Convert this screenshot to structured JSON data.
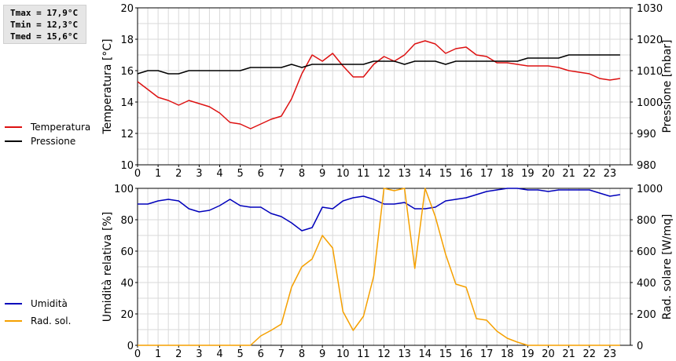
{
  "stats": {
    "tmax": "Tmax = 17,9°C",
    "tmin": "Tmin = 12,3°C",
    "tmed": "Tmed = 15,6°C"
  },
  "colors": {
    "temperature": "#dd1111",
    "pressure": "#000000",
    "humidity": "#0000bb",
    "radiation": "#f5a000",
    "grid": "#d9d9d9"
  },
  "chart_data": [
    {
      "type": "line",
      "xlim": [
        0,
        24
      ],
      "x_ticks": [
        "0",
        "1",
        "2",
        "3",
        "4",
        "5",
        "6",
        "7",
        "8",
        "9",
        "10",
        "11",
        "12",
        "13",
        "14",
        "15",
        "16",
        "17",
        "18",
        "19",
        "20",
        "21",
        "22",
        "23"
      ],
      "ylabel": "Temperatura [°C]",
      "ylim": [
        10,
        20
      ],
      "y_ticks": [
        "10",
        "12",
        "14",
        "16",
        "18",
        "20"
      ],
      "y2label": "Pressione [mbar]",
      "y2lim": [
        980,
        1030
      ],
      "y2_ticks": [
        "980",
        "990",
        "1000",
        "1010",
        "1020",
        "1030"
      ],
      "legend": [
        "Temperatura",
        "Pressione"
      ],
      "legend_placement": "left",
      "grid": true,
      "series": [
        {
          "name": "Temperatura",
          "axis": "left",
          "points": [
            [
              0,
              15.3
            ],
            [
              0.5,
              14.8
            ],
            [
              1,
              14.3
            ],
            [
              1.5,
              14.1
            ],
            [
              2,
              13.8
            ],
            [
              2.5,
              14.1
            ],
            [
              3,
              13.9
            ],
            [
              3.5,
              13.7
            ],
            [
              4,
              13.3
            ],
            [
              4.5,
              12.7
            ],
            [
              5,
              12.6
            ],
            [
              5.5,
              12.3
            ],
            [
              6,
              12.6
            ],
            [
              6.5,
              12.9
            ],
            [
              7,
              13.1
            ],
            [
              7.5,
              14.2
            ],
            [
              8,
              15.8
            ],
            [
              8.5,
              17.0
            ],
            [
              9,
              16.6
            ],
            [
              9.5,
              17.1
            ],
            [
              10,
              16.3
            ],
            [
              10.5,
              15.6
            ],
            [
              11,
              15.6
            ],
            [
              11.5,
              16.4
            ],
            [
              12,
              16.9
            ],
            [
              12.5,
              16.6
            ],
            [
              13,
              17.0
            ],
            [
              13.5,
              17.7
            ],
            [
              14,
              17.9
            ],
            [
              14.5,
              17.7
            ],
            [
              15,
              17.1
            ],
            [
              15.5,
              17.4
            ],
            [
              16,
              17.5
            ],
            [
              16.5,
              17.0
            ],
            [
              17,
              16.9
            ],
            [
              17.5,
              16.5
            ],
            [
              18,
              16.5
            ],
            [
              18.5,
              16.4
            ],
            [
              19,
              16.3
            ],
            [
              19.5,
              16.3
            ],
            [
              20,
              16.3
            ],
            [
              20.5,
              16.2
            ],
            [
              21,
              16.0
            ],
            [
              21.5,
              15.9
            ],
            [
              22,
              15.8
            ],
            [
              22.5,
              15.5
            ],
            [
              23,
              15.4
            ],
            [
              23.5,
              15.5
            ]
          ]
        },
        {
          "name": "Pressione",
          "axis": "right",
          "points": [
            [
              0,
              1009
            ],
            [
              0.5,
              1010
            ],
            [
              1,
              1010
            ],
            [
              1.5,
              1009
            ],
            [
              2,
              1009
            ],
            [
              2.5,
              1010
            ],
            [
              3,
              1010
            ],
            [
              3.5,
              1010
            ],
            [
              4,
              1010
            ],
            [
              4.5,
              1010
            ],
            [
              5,
              1010
            ],
            [
              5.5,
              1011
            ],
            [
              6,
              1011
            ],
            [
              6.5,
              1011
            ],
            [
              7,
              1011
            ],
            [
              7.5,
              1012
            ],
            [
              8,
              1011
            ],
            [
              8.5,
              1012
            ],
            [
              9,
              1012
            ],
            [
              9.5,
              1012
            ],
            [
              10,
              1012
            ],
            [
              10.5,
              1012
            ],
            [
              11,
              1012
            ],
            [
              11.5,
              1013
            ],
            [
              12,
              1013
            ],
            [
              12.5,
              1013
            ],
            [
              13,
              1012
            ],
            [
              13.5,
              1013
            ],
            [
              14,
              1013
            ],
            [
              14.5,
              1013
            ],
            [
              15,
              1012
            ],
            [
              15.5,
              1013
            ],
            [
              16,
              1013
            ],
            [
              16.5,
              1013
            ],
            [
              17,
              1013
            ],
            [
              17.5,
              1013
            ],
            [
              18,
              1013
            ],
            [
              18.5,
              1013
            ],
            [
              19,
              1014
            ],
            [
              19.5,
              1014
            ],
            [
              20,
              1014
            ],
            [
              20.5,
              1014
            ],
            [
              21,
              1015
            ],
            [
              21.5,
              1015
            ],
            [
              22,
              1015
            ],
            [
              22.5,
              1015
            ],
            [
              23,
              1015
            ],
            [
              23.5,
              1015
            ]
          ]
        }
      ]
    },
    {
      "type": "line",
      "xlim": [
        0,
        24
      ],
      "x_ticks": [
        "0",
        "1",
        "2",
        "3",
        "4",
        "5",
        "6",
        "7",
        "8",
        "9",
        "10",
        "11",
        "12",
        "13",
        "14",
        "15",
        "16",
        "17",
        "18",
        "19",
        "20",
        "21",
        "22",
        "23"
      ],
      "ylabel": "Umidità relativa [%]",
      "ylim": [
        0,
        100
      ],
      "y_ticks": [
        "0",
        "20",
        "40",
        "60",
        "80",
        "100"
      ],
      "y2label": "Rad. solare [W/mq]",
      "y2lim": [
        0,
        1000
      ],
      "y2_ticks": [
        "0",
        "200",
        "400",
        "600",
        "800",
        "1000"
      ],
      "legend": [
        "Umidità",
        "Rad. sol."
      ],
      "legend_placement": "left",
      "grid": true,
      "series": [
        {
          "name": "Umidità",
          "axis": "left",
          "points": [
            [
              0,
              90
            ],
            [
              0.5,
              90
            ],
            [
              1,
              92
            ],
            [
              1.5,
              93
            ],
            [
              2,
              92
            ],
            [
              2.5,
              87
            ],
            [
              3,
              85
            ],
            [
              3.5,
              86
            ],
            [
              4,
              89
            ],
            [
              4.5,
              93
            ],
            [
              5,
              89
            ],
            [
              5.5,
              88
            ],
            [
              6,
              88
            ],
            [
              6.5,
              84
            ],
            [
              7,
              82
            ],
            [
              7.5,
              78
            ],
            [
              8,
              73
            ],
            [
              8.5,
              75
            ],
            [
              9,
              88
            ],
            [
              9.5,
              87
            ],
            [
              10,
              92
            ],
            [
              10.5,
              94
            ],
            [
              11,
              95
            ],
            [
              11.5,
              93
            ],
            [
              12,
              90
            ],
            [
              12.5,
              90
            ],
            [
              13,
              91
            ],
            [
              13.5,
              87
            ],
            [
              14,
              87
            ],
            [
              14.5,
              88
            ],
            [
              15,
              92
            ],
            [
              15.5,
              93
            ],
            [
              16,
              94
            ],
            [
              16.5,
              96
            ],
            [
              17,
              98
            ],
            [
              17.5,
              99
            ],
            [
              18,
              100
            ],
            [
              18.5,
              100
            ],
            [
              19,
              99
            ],
            [
              19.5,
              99
            ],
            [
              20,
              98
            ],
            [
              20.5,
              99
            ],
            [
              21,
              99
            ],
            [
              21.5,
              99
            ],
            [
              22,
              99
            ],
            [
              22.5,
              97
            ],
            [
              23,
              95
            ],
            [
              23.5,
              96
            ]
          ]
        },
        {
          "name": "Rad. sol.",
          "axis": "right",
          "points": [
            [
              0,
              0
            ],
            [
              0.5,
              0
            ],
            [
              1,
              0
            ],
            [
              1.5,
              0
            ],
            [
              2,
              0
            ],
            [
              2.5,
              0
            ],
            [
              3,
              0
            ],
            [
              3.5,
              0
            ],
            [
              4,
              0
            ],
            [
              4.5,
              0
            ],
            [
              5,
              0
            ],
            [
              5.5,
              0
            ],
            [
              6,
              60
            ],
            [
              6.5,
              95
            ],
            [
              7,
              135
            ],
            [
              7.5,
              370
            ],
            [
              8,
              500
            ],
            [
              8.5,
              550
            ],
            [
              9,
              700
            ],
            [
              9.5,
              620
            ],
            [
              10,
              215
            ],
            [
              10.5,
              95
            ],
            [
              11,
              185
            ],
            [
              11.5,
              440
            ],
            [
              12,
              1000
            ],
            [
              12.5,
              985
            ],
            [
              13,
              1000
            ],
            [
              13.5,
              490
            ],
            [
              14,
              1000
            ],
            [
              14.5,
              820
            ],
            [
              15,
              580
            ],
            [
              15.5,
              390
            ],
            [
              16,
              370
            ],
            [
              16.5,
              170
            ],
            [
              17,
              160
            ],
            [
              17.5,
              90
            ],
            [
              18,
              45
            ],
            [
              18.5,
              20
            ],
            [
              19,
              0
            ],
            [
              19.5,
              0
            ],
            [
              20,
              0
            ],
            [
              20.5,
              0
            ],
            [
              21,
              0
            ],
            [
              21.5,
              0
            ],
            [
              22,
              0
            ],
            [
              22.5,
              0
            ],
            [
              23,
              0
            ],
            [
              23.5,
              0
            ]
          ]
        }
      ]
    }
  ]
}
